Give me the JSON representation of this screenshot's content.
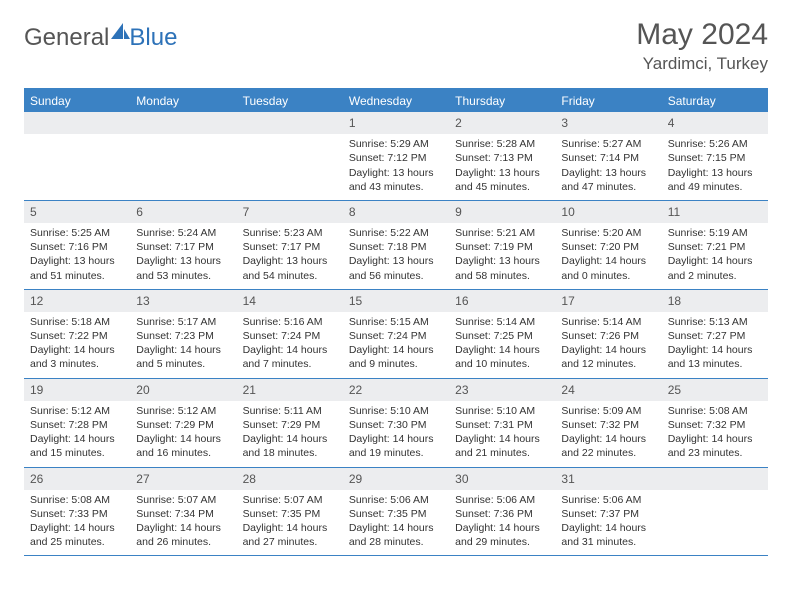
{
  "brand": {
    "part1": "General",
    "part2": "Blue"
  },
  "title": "May 2024",
  "location": "Yardimci, Turkey",
  "colors": {
    "header_bg": "#3b82c4",
    "daynum_bg": "#ecedef",
    "text": "#333333",
    "muted": "#555555"
  },
  "weekdays": [
    "Sunday",
    "Monday",
    "Tuesday",
    "Wednesday",
    "Thursday",
    "Friday",
    "Saturday"
  ],
  "weeks": [
    [
      {
        "n": "",
        "lines": []
      },
      {
        "n": "",
        "lines": []
      },
      {
        "n": "",
        "lines": []
      },
      {
        "n": "1",
        "lines": [
          "Sunrise: 5:29 AM",
          "Sunset: 7:12 PM",
          "Daylight: 13 hours and 43 minutes."
        ]
      },
      {
        "n": "2",
        "lines": [
          "Sunrise: 5:28 AM",
          "Sunset: 7:13 PM",
          "Daylight: 13 hours and 45 minutes."
        ]
      },
      {
        "n": "3",
        "lines": [
          "Sunrise: 5:27 AM",
          "Sunset: 7:14 PM",
          "Daylight: 13 hours and 47 minutes."
        ]
      },
      {
        "n": "4",
        "lines": [
          "Sunrise: 5:26 AM",
          "Sunset: 7:15 PM",
          "Daylight: 13 hours and 49 minutes."
        ]
      }
    ],
    [
      {
        "n": "5",
        "lines": [
          "Sunrise: 5:25 AM",
          "Sunset: 7:16 PM",
          "Daylight: 13 hours and 51 minutes."
        ]
      },
      {
        "n": "6",
        "lines": [
          "Sunrise: 5:24 AM",
          "Sunset: 7:17 PM",
          "Daylight: 13 hours and 53 minutes."
        ]
      },
      {
        "n": "7",
        "lines": [
          "Sunrise: 5:23 AM",
          "Sunset: 7:17 PM",
          "Daylight: 13 hours and 54 minutes."
        ]
      },
      {
        "n": "8",
        "lines": [
          "Sunrise: 5:22 AM",
          "Sunset: 7:18 PM",
          "Daylight: 13 hours and 56 minutes."
        ]
      },
      {
        "n": "9",
        "lines": [
          "Sunrise: 5:21 AM",
          "Sunset: 7:19 PM",
          "Daylight: 13 hours and 58 minutes."
        ]
      },
      {
        "n": "10",
        "lines": [
          "Sunrise: 5:20 AM",
          "Sunset: 7:20 PM",
          "Daylight: 14 hours and 0 minutes."
        ]
      },
      {
        "n": "11",
        "lines": [
          "Sunrise: 5:19 AM",
          "Sunset: 7:21 PM",
          "Daylight: 14 hours and 2 minutes."
        ]
      }
    ],
    [
      {
        "n": "12",
        "lines": [
          "Sunrise: 5:18 AM",
          "Sunset: 7:22 PM",
          "Daylight: 14 hours and 3 minutes."
        ]
      },
      {
        "n": "13",
        "lines": [
          "Sunrise: 5:17 AM",
          "Sunset: 7:23 PM",
          "Daylight: 14 hours and 5 minutes."
        ]
      },
      {
        "n": "14",
        "lines": [
          "Sunrise: 5:16 AM",
          "Sunset: 7:24 PM",
          "Daylight: 14 hours and 7 minutes."
        ]
      },
      {
        "n": "15",
        "lines": [
          "Sunrise: 5:15 AM",
          "Sunset: 7:24 PM",
          "Daylight: 14 hours and 9 minutes."
        ]
      },
      {
        "n": "16",
        "lines": [
          "Sunrise: 5:14 AM",
          "Sunset: 7:25 PM",
          "Daylight: 14 hours and 10 minutes."
        ]
      },
      {
        "n": "17",
        "lines": [
          "Sunrise: 5:14 AM",
          "Sunset: 7:26 PM",
          "Daylight: 14 hours and 12 minutes."
        ]
      },
      {
        "n": "18",
        "lines": [
          "Sunrise: 5:13 AM",
          "Sunset: 7:27 PM",
          "Daylight: 14 hours and 13 minutes."
        ]
      }
    ],
    [
      {
        "n": "19",
        "lines": [
          "Sunrise: 5:12 AM",
          "Sunset: 7:28 PM",
          "Daylight: 14 hours and 15 minutes."
        ]
      },
      {
        "n": "20",
        "lines": [
          "Sunrise: 5:12 AM",
          "Sunset: 7:29 PM",
          "Daylight: 14 hours and 16 minutes."
        ]
      },
      {
        "n": "21",
        "lines": [
          "Sunrise: 5:11 AM",
          "Sunset: 7:29 PM",
          "Daylight: 14 hours and 18 minutes."
        ]
      },
      {
        "n": "22",
        "lines": [
          "Sunrise: 5:10 AM",
          "Sunset: 7:30 PM",
          "Daylight: 14 hours and 19 minutes."
        ]
      },
      {
        "n": "23",
        "lines": [
          "Sunrise: 5:10 AM",
          "Sunset: 7:31 PM",
          "Daylight: 14 hours and 21 minutes."
        ]
      },
      {
        "n": "24",
        "lines": [
          "Sunrise: 5:09 AM",
          "Sunset: 7:32 PM",
          "Daylight: 14 hours and 22 minutes."
        ]
      },
      {
        "n": "25",
        "lines": [
          "Sunrise: 5:08 AM",
          "Sunset: 7:32 PM",
          "Daylight: 14 hours and 23 minutes."
        ]
      }
    ],
    [
      {
        "n": "26",
        "lines": [
          "Sunrise: 5:08 AM",
          "Sunset: 7:33 PM",
          "Daylight: 14 hours and 25 minutes."
        ]
      },
      {
        "n": "27",
        "lines": [
          "Sunrise: 5:07 AM",
          "Sunset: 7:34 PM",
          "Daylight: 14 hours and 26 minutes."
        ]
      },
      {
        "n": "28",
        "lines": [
          "Sunrise: 5:07 AM",
          "Sunset: 7:35 PM",
          "Daylight: 14 hours and 27 minutes."
        ]
      },
      {
        "n": "29",
        "lines": [
          "Sunrise: 5:06 AM",
          "Sunset: 7:35 PM",
          "Daylight: 14 hours and 28 minutes."
        ]
      },
      {
        "n": "30",
        "lines": [
          "Sunrise: 5:06 AM",
          "Sunset: 7:36 PM",
          "Daylight: 14 hours and 29 minutes."
        ]
      },
      {
        "n": "31",
        "lines": [
          "Sunrise: 5:06 AM",
          "Sunset: 7:37 PM",
          "Daylight: 14 hours and 31 minutes."
        ]
      },
      {
        "n": "",
        "lines": []
      }
    ]
  ]
}
